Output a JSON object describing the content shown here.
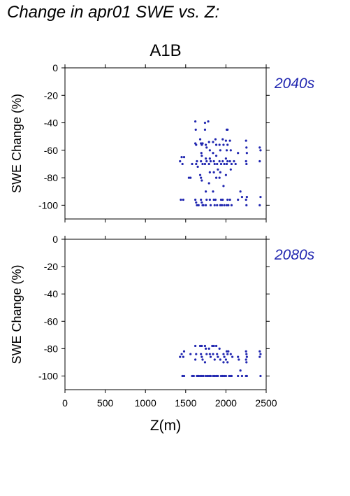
{
  "page": {
    "title": "Change in apr01 SWE vs. Z:",
    "scenario": "A1B"
  },
  "colors": {
    "points": "#2026b0",
    "axes": "#000000",
    "period_label": "#2026b0"
  },
  "chart_data": [
    {
      "type": "scatter",
      "period_label": "2040s",
      "xlabel": "",
      "ylabel": "SWE Change (%)",
      "xlim": [
        0,
        2500
      ],
      "ylim": [
        -110,
        0
      ],
      "xticks": [
        0,
        500,
        1000,
        1500,
        2000,
        2500
      ],
      "yticks": [
        0,
        -20,
        -40,
        -60,
        -80,
        -100
      ],
      "show_x_tick_labels": false,
      "grid": false,
      "points": [
        [
          1430,
          -68
        ],
        [
          1450,
          -65
        ],
        [
          1460,
          -70
        ],
        [
          1480,
          -65
        ],
        [
          1440,
          -96
        ],
        [
          1470,
          -96
        ],
        [
          1540,
          -80
        ],
        [
          1560,
          -80
        ],
        [
          1580,
          -70
        ],
        [
          1620,
          -39
        ],
        [
          1625,
          -45
        ],
        [
          1620,
          -55
        ],
        [
          1630,
          -56
        ],
        [
          1640,
          -68
        ],
        [
          1630,
          -70
        ],
        [
          1650,
          -72
        ],
        [
          1620,
          -96
        ],
        [
          1630,
          -98
        ],
        [
          1640,
          -100
        ],
        [
          1660,
          -100
        ],
        [
          1680,
          -52
        ],
        [
          1690,
          -55
        ],
        [
          1700,
          -56
        ],
        [
          1710,
          -55
        ],
        [
          1695,
          -62
        ],
        [
          1700,
          -64
        ],
        [
          1690,
          -68
        ],
        [
          1710,
          -70
        ],
        [
          1680,
          -78
        ],
        [
          1690,
          -80
        ],
        [
          1700,
          -82
        ],
        [
          1690,
          -96
        ],
        [
          1700,
          -98
        ],
        [
          1710,
          -100
        ],
        [
          1720,
          -100
        ],
        [
          1740,
          -40
        ],
        [
          1740,
          -45
        ],
        [
          1750,
          -56
        ],
        [
          1760,
          -58
        ],
        [
          1750,
          -66
        ],
        [
          1760,
          -68
        ],
        [
          1740,
          -70
        ],
        [
          1750,
          -90
        ],
        [
          1760,
          -96
        ],
        [
          1750,
          -100
        ],
        [
          1780,
          -39
        ],
        [
          1790,
          -54
        ],
        [
          1800,
          -60
        ],
        [
          1800,
          -66
        ],
        [
          1790,
          -70
        ],
        [
          1810,
          -68
        ],
        [
          1800,
          -76
        ],
        [
          1790,
          -84
        ],
        [
          1800,
          -96
        ],
        [
          1810,
          -100
        ],
        [
          1840,
          -54
        ],
        [
          1840,
          -62
        ],
        [
          1850,
          -68
        ],
        [
          1860,
          -70
        ],
        [
          1850,
          -76
        ],
        [
          1840,
          -90
        ],
        [
          1850,
          -96
        ],
        [
          1860,
          -100
        ],
        [
          1870,
          -52
        ],
        [
          1880,
          -56
        ],
        [
          1880,
          -64
        ],
        [
          1890,
          -70
        ],
        [
          1900,
          -74
        ],
        [
          1880,
          -80
        ],
        [
          1870,
          -96
        ],
        [
          1890,
          -100
        ],
        [
          1920,
          -56
        ],
        [
          1930,
          -60
        ],
        [
          1920,
          -68
        ],
        [
          1940,
          -70
        ],
        [
          1930,
          -76
        ],
        [
          1920,
          -80
        ],
        [
          1940,
          -96
        ],
        [
          1930,
          -100
        ],
        [
          1950,
          -100
        ],
        [
          1960,
          -52
        ],
        [
          1970,
          -56
        ],
        [
          1960,
          -68
        ],
        [
          1980,
          -70
        ],
        [
          1970,
          -86
        ],
        [
          1960,
          -96
        ],
        [
          1980,
          -100
        ],
        [
          2010,
          -45
        ],
        [
          2020,
          -45
        ],
        [
          2000,
          -53
        ],
        [
          2020,
          -56
        ],
        [
          2010,
          -60
        ],
        [
          2000,
          -66
        ],
        [
          2020,
          -68
        ],
        [
          2010,
          -70
        ],
        [
          2000,
          -78
        ],
        [
          2020,
          -96
        ],
        [
          2010,
          -100
        ],
        [
          2030,
          -100
        ],
        [
          2050,
          -53
        ],
        [
          2060,
          -60
        ],
        [
          2050,
          -68
        ],
        [
          2070,
          -70
        ],
        [
          2060,
          -74
        ],
        [
          2050,
          -96
        ],
        [
          2070,
          -100
        ],
        [
          2100,
          -68
        ],
        [
          2120,
          -70
        ],
        [
          2150,
          -62
        ],
        [
          2180,
          -90
        ],
        [
          2200,
          -94
        ],
        [
          2150,
          -96
        ],
        [
          2250,
          -53
        ],
        [
          2255,
          -58
        ],
        [
          2260,
          -62
        ],
        [
          2250,
          -68
        ],
        [
          2255,
          -70
        ],
        [
          2260,
          -94
        ],
        [
          2250,
          -96
        ],
        [
          2255,
          -100
        ],
        [
          2420,
          -58
        ],
        [
          2430,
          -60
        ],
        [
          2420,
          -68
        ],
        [
          2430,
          -94
        ],
        [
          2420,
          -100
        ]
      ]
    },
    {
      "type": "scatter",
      "period_label": "2080s",
      "xlabel": "Z(m)",
      "ylabel": "SWE Change (%)",
      "xlim": [
        0,
        2500
      ],
      "ylim": [
        -110,
        0
      ],
      "xticks": [
        0,
        500,
        1000,
        1500,
        2000,
        2500
      ],
      "yticks": [
        0,
        -20,
        -40,
        -60,
        -80,
        -100
      ],
      "show_x_tick_labels": true,
      "grid": false,
      "points": [
        [
          1430,
          -86
        ],
        [
          1450,
          -84
        ],
        [
          1470,
          -86
        ],
        [
          1480,
          -82
        ],
        [
          1460,
          -100
        ],
        [
          1480,
          -100
        ],
        [
          1560,
          -84
        ],
        [
          1580,
          -100
        ],
        [
          1600,
          -100
        ],
        [
          1620,
          -78
        ],
        [
          1630,
          -84
        ],
        [
          1620,
          -88
        ],
        [
          1640,
          -100
        ],
        [
          1650,
          -100
        ],
        [
          1660,
          -100
        ],
        [
          1680,
          -78
        ],
        [
          1700,
          -78
        ],
        [
          1690,
          -84
        ],
        [
          1700,
          -86
        ],
        [
          1710,
          -88
        ],
        [
          1680,
          -100
        ],
        [
          1700,
          -100
        ],
        [
          1720,
          -100
        ],
        [
          1740,
          -78
        ],
        [
          1750,
          -80
        ],
        [
          1760,
          -84
        ],
        [
          1740,
          -90
        ],
        [
          1750,
          -100
        ],
        [
          1770,
          -100
        ],
        [
          1790,
          -80
        ],
        [
          1800,
          -84
        ],
        [
          1810,
          -86
        ],
        [
          1790,
          -100
        ],
        [
          1810,
          -100
        ],
        [
          1830,
          -78
        ],
        [
          1850,
          -78
        ],
        [
          1840,
          -84
        ],
        [
          1860,
          -88
        ],
        [
          1840,
          -100
        ],
        [
          1860,
          -100
        ],
        [
          1880,
          -78
        ],
        [
          1890,
          -84
        ],
        [
          1900,
          -86
        ],
        [
          1880,
          -100
        ],
        [
          1900,
          -100
        ],
        [
          1920,
          -80
        ],
        [
          1930,
          -88
        ],
        [
          1940,
          -100
        ],
        [
          1960,
          -100
        ],
        [
          1970,
          -84
        ],
        [
          1980,
          -86
        ],
        [
          1970,
          -90
        ],
        [
          1980,
          -100
        ],
        [
          2000,
          -100
        ],
        [
          2010,
          -82
        ],
        [
          2020,
          -84
        ],
        [
          2030,
          -82
        ],
        [
          2000,
          -88
        ],
        [
          2020,
          -90
        ],
        [
          2040,
          -100
        ],
        [
          2060,
          -100
        ],
        [
          2060,
          -84
        ],
        [
          2080,
          -86
        ],
        [
          2070,
          -100
        ],
        [
          2150,
          -86
        ],
        [
          2160,
          -88
        ],
        [
          2180,
          -96
        ],
        [
          2150,
          -100
        ],
        [
          2200,
          -100
        ],
        [
          2250,
          -82
        ],
        [
          2255,
          -84
        ],
        [
          2260,
          -86
        ],
        [
          2250,
          -88
        ],
        [
          2255,
          -90
        ],
        [
          2260,
          -100
        ],
        [
          2250,
          -100
        ],
        [
          2420,
          -82
        ],
        [
          2430,
          -84
        ],
        [
          2420,
          -86
        ],
        [
          2430,
          -100
        ]
      ]
    }
  ]
}
